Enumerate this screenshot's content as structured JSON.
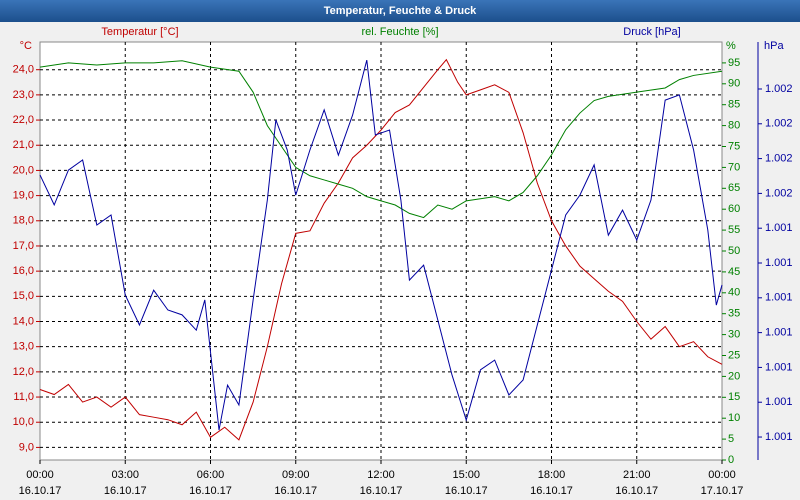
{
  "chart_data": {
    "type": "line",
    "title": "Temperatur, Feuchte & Druck",
    "axis_units": {
      "y": "°C",
      "y2": "%",
      "y3": "hPa"
    },
    "xlim": [
      0,
      24
    ],
    "xticks": [
      {
        "value": 0,
        "label": "00:00"
      },
      {
        "value": 3,
        "label": "03:00"
      },
      {
        "value": 6,
        "label": "06:00"
      },
      {
        "value": 9,
        "label": "09:00"
      },
      {
        "value": 12,
        "label": "12:00"
      },
      {
        "value": 15,
        "label": "15:00"
      },
      {
        "value": 18,
        "label": "18:00"
      },
      {
        "value": 21,
        "label": "21:00"
      },
      {
        "value": 24,
        "label": "00:00"
      }
    ],
    "xtick_dates": [
      "16.10.17",
      "16.10.17",
      "16.10.17",
      "16.10.17",
      "16.10.17",
      "16.10.17",
      "16.10.17",
      "16.10.17",
      "17.10.17"
    ],
    "ylim": [
      8.5,
      25.1
    ],
    "yticks": [
      {
        "value": 9,
        "label": "9,0"
      },
      {
        "value": 10,
        "label": "10,0"
      },
      {
        "value": 11,
        "label": "11,0"
      },
      {
        "value": 12,
        "label": "12,0"
      },
      {
        "value": 13,
        "label": "13,0"
      },
      {
        "value": 14,
        "label": "14,0"
      },
      {
        "value": 15,
        "label": "15,0"
      },
      {
        "value": 16,
        "label": "16,0"
      },
      {
        "value": 17,
        "label": "17,0"
      },
      {
        "value": 18,
        "label": "18,0"
      },
      {
        "value": 19,
        "label": "19,0"
      },
      {
        "value": 20,
        "label": "20,0"
      },
      {
        "value": 21,
        "label": "21,0"
      },
      {
        "value": 22,
        "label": "22,0"
      },
      {
        "value": 23,
        "label": "23,0"
      },
      {
        "value": 24,
        "label": "24,0"
      }
    ],
    "y2lim": [
      0,
      100
    ],
    "y2ticks": [
      0,
      5,
      10,
      15,
      20,
      25,
      30,
      35,
      40,
      45,
      50,
      55,
      60,
      65,
      70,
      75,
      80,
      85,
      90,
      95
    ],
    "y3lim": [
      1.000834,
      1.002035
    ],
    "y3ticks": [
      {
        "value": 1.0019,
        "label": "1.002"
      },
      {
        "value": 1.0018,
        "label": "1.002"
      },
      {
        "value": 1.0017,
        "label": "1.002"
      },
      {
        "value": 1.0016,
        "label": "1.002"
      },
      {
        "value": 1.0015,
        "label": "1.001"
      },
      {
        "value": 1.0014,
        "label": "1.001"
      },
      {
        "value": 1.0013,
        "label": "1.001"
      },
      {
        "value": 1.0012,
        "label": "1.001"
      },
      {
        "value": 1.0011,
        "label": "1.001"
      },
      {
        "value": 1.001,
        "label": "1.001"
      },
      {
        "value": 1.0009,
        "label": "1.001"
      }
    ],
    "grid": true,
    "series": [
      {
        "name": "Temperatur [°C]",
        "color": "#c00000",
        "axis": "y",
        "x": [
          0,
          0.5,
          1,
          1.5,
          2,
          2.5,
          3,
          3.5,
          4,
          4.5,
          5,
          5.5,
          6,
          6.5,
          7,
          7.5,
          8,
          8.5,
          9,
          9.5,
          10,
          10.5,
          11,
          11.5,
          12,
          12.5,
          13,
          13.5,
          14,
          14.3,
          14.7,
          15,
          15.5,
          16,
          16.5,
          17,
          17.5,
          18,
          18.5,
          19,
          19.5,
          20,
          20.5,
          21,
          21.5,
          22,
          22.5,
          23,
          23.5,
          24
        ],
        "values": [
          11.3,
          11.1,
          11.5,
          10.8,
          11.0,
          10.6,
          11.0,
          10.3,
          10.2,
          10.1,
          9.9,
          10.4,
          9.4,
          9.8,
          9.3,
          10.8,
          13.0,
          15.5,
          17.5,
          17.6,
          18.7,
          19.5,
          20.5,
          21.0,
          21.6,
          22.3,
          22.6,
          23.3,
          24.0,
          24.4,
          23.5,
          23.0,
          23.2,
          23.4,
          23.1,
          21.5,
          19.5,
          18.0,
          17.0,
          16.2,
          15.7,
          15.2,
          14.8,
          14.0,
          13.3,
          13.8,
          13.0,
          13.2,
          12.6,
          12.3
        ]
      },
      {
        "name": "rel. Feuchte [%]",
        "color": "#008000",
        "axis": "y2",
        "x": [
          0,
          1,
          2,
          3,
          4,
          5,
          6,
          7,
          7.5,
          8,
          8.5,
          9,
          9.5,
          10,
          10.5,
          11,
          11.5,
          12,
          12.5,
          13,
          13.5,
          14,
          14.5,
          15,
          16,
          16.5,
          17,
          17.5,
          18,
          18.5,
          19,
          19.5,
          20,
          21,
          22,
          22.5,
          23,
          24
        ],
        "values": [
          94,
          95,
          94.5,
          95,
          95,
          95.5,
          94,
          93,
          88,
          80,
          75,
          70,
          68,
          67,
          66,
          65,
          63,
          62,
          61,
          59,
          58,
          61,
          60,
          62,
          63,
          62,
          64,
          68,
          73,
          79,
          83,
          86,
          87,
          88,
          89,
          91,
          92,
          93
        ]
      },
      {
        "name": "Druck [hPa]",
        "color": "#0000a0",
        "axis": "y3",
        "x": [
          0,
          0.5,
          1,
          1.5,
          2,
          2.5,
          3,
          3.5,
          4,
          4.5,
          5,
          5.5,
          5.8,
          6.3,
          6.6,
          7,
          7.5,
          8,
          8.3,
          8.7,
          9,
          9.5,
          10,
          10.5,
          11,
          11.5,
          11.8,
          12.3,
          12.7,
          13,
          13.5,
          14,
          14.5,
          15,
          15.5,
          16,
          16.5,
          17,
          17.5,
          18,
          18.5,
          19,
          19.5,
          20,
          20.5,
          21,
          21.5,
          22,
          22.5,
          23,
          23.5,
          23.8,
          24
        ],
        "values": [
          1.001653,
          1.001567,
          1.001667,
          1.001696,
          1.001509,
          1.001538,
          1.001308,
          1.001222,
          1.001322,
          1.001265,
          1.001251,
          1.001207,
          1.001294,
          1.00092,
          1.001049,
          1.000992,
          1.001294,
          1.001581,
          1.001811,
          1.001725,
          1.001595,
          1.001725,
          1.00184,
          1.00171,
          1.001825,
          1.001983,
          1.001768,
          1.001782,
          1.001581,
          1.001351,
          1.001394,
          1.001236,
          1.001078,
          1.000949,
          1.001093,
          1.001121,
          1.001021,
          1.001064,
          1.001222,
          1.00138,
          1.001538,
          1.001595,
          1.001682,
          1.00148,
          1.001552,
          1.001466,
          1.001581,
          1.001868,
          1.001883,
          1.001725,
          1.001495,
          1.001279,
          1.001337
        ]
      }
    ]
  }
}
